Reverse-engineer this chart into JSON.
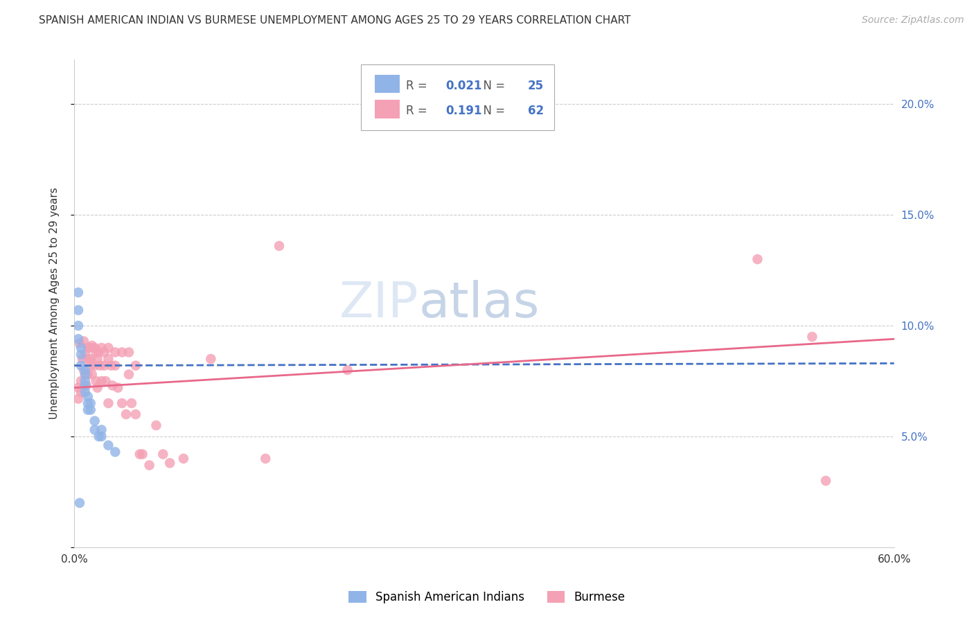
{
  "title": "SPANISH AMERICAN INDIAN VS BURMESE UNEMPLOYMENT AMONG AGES 25 TO 29 YEARS CORRELATION CHART",
  "source": "Source: ZipAtlas.com",
  "ylabel": "Unemployment Among Ages 25 to 29 years",
  "xlim": [
    0.0,
    0.6
  ],
  "ylim": [
    0.0,
    0.22
  ],
  "yticks": [
    0.0,
    0.05,
    0.1,
    0.15,
    0.2
  ],
  "xticks": [
    0.0,
    0.1,
    0.2,
    0.3,
    0.4,
    0.5,
    0.6
  ],
  "blue_label": "Spanish American Indians",
  "pink_label": "Burmese",
  "blue_R": "0.021",
  "blue_N": "25",
  "pink_R": "0.191",
  "pink_N": "62",
  "blue_color": "#91b4e8",
  "pink_color": "#f4a0b5",
  "blue_line_color": "#4472c4",
  "pink_line_color": "#e8688a",
  "blue_scatter_x": [
    0.003,
    0.003,
    0.003,
    0.003,
    0.005,
    0.005,
    0.005,
    0.008,
    0.008,
    0.008,
    0.008,
    0.008,
    0.01,
    0.01,
    0.01,
    0.012,
    0.012,
    0.015,
    0.015,
    0.018,
    0.02,
    0.02,
    0.025,
    0.03,
    0.004
  ],
  "blue_scatter_y": [
    0.115,
    0.107,
    0.1,
    0.094,
    0.09,
    0.087,
    0.082,
    0.08,
    0.078,
    0.075,
    0.073,
    0.07,
    0.068,
    0.065,
    0.062,
    0.065,
    0.062,
    0.057,
    0.053,
    0.05,
    0.053,
    0.05,
    0.046,
    0.043,
    0.02
  ],
  "pink_scatter_x": [
    0.003,
    0.003,
    0.004,
    0.005,
    0.005,
    0.006,
    0.007,
    0.007,
    0.008,
    0.008,
    0.009,
    0.01,
    0.01,
    0.01,
    0.011,
    0.012,
    0.012,
    0.013,
    0.013,
    0.015,
    0.015,
    0.016,
    0.016,
    0.017,
    0.017,
    0.018,
    0.019,
    0.02,
    0.02,
    0.022,
    0.022,
    0.023,
    0.025,
    0.025,
    0.025,
    0.027,
    0.028,
    0.03,
    0.03,
    0.032,
    0.035,
    0.035,
    0.038,
    0.04,
    0.04,
    0.042,
    0.045,
    0.045,
    0.048,
    0.05,
    0.055,
    0.06,
    0.065,
    0.07,
    0.08,
    0.1,
    0.14,
    0.15,
    0.2,
    0.5,
    0.54,
    0.55
  ],
  "pink_scatter_y": [
    0.072,
    0.067,
    0.092,
    0.075,
    0.07,
    0.085,
    0.093,
    0.08,
    0.087,
    0.078,
    0.073,
    0.09,
    0.085,
    0.078,
    0.09,
    0.085,
    0.082,
    0.091,
    0.078,
    0.09,
    0.082,
    0.088,
    0.075,
    0.085,
    0.072,
    0.088,
    0.082,
    0.09,
    0.075,
    0.088,
    0.082,
    0.075,
    0.09,
    0.085,
    0.065,
    0.082,
    0.073,
    0.088,
    0.082,
    0.072,
    0.088,
    0.065,
    0.06,
    0.088,
    0.078,
    0.065,
    0.082,
    0.06,
    0.042,
    0.042,
    0.037,
    0.055,
    0.042,
    0.038,
    0.04,
    0.085,
    0.04,
    0.136,
    0.08,
    0.13,
    0.095,
    0.03
  ],
  "blue_trend_x0": 0.0,
  "blue_trend_y0": 0.082,
  "blue_trend_x1": 0.6,
  "blue_trend_y1": 0.083,
  "pink_trend_x0": 0.0,
  "pink_trend_y0": 0.072,
  "pink_trend_x1": 0.6,
  "pink_trend_y1": 0.094,
  "title_fontsize": 11,
  "source_fontsize": 10,
  "axis_tick_fontsize": 11,
  "tick_color": "#4472c4",
  "watermark_color": "#c8d8ee",
  "watermark_alpha": 0.6
}
